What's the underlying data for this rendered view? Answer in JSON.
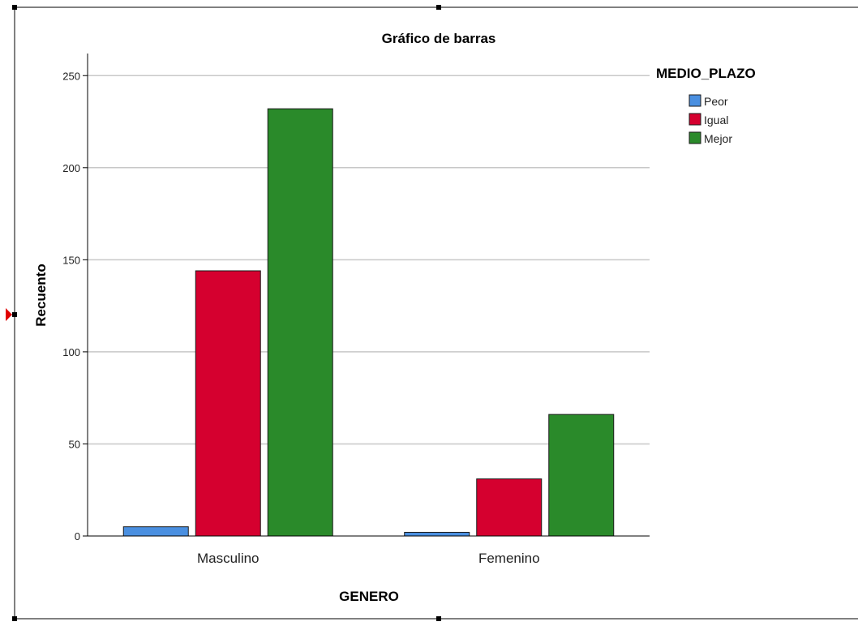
{
  "chart_data": {
    "type": "bar",
    "title": "Gráfico de barras",
    "xlabel": "GENERO",
    "ylabel": "Recuento",
    "categories": [
      "Masculino",
      "Femenino"
    ],
    "series": [
      {
        "name": "Peor",
        "values": [
          5,
          2
        ],
        "color": "#4a8fe0"
      },
      {
        "name": "Igual",
        "values": [
          144,
          31
        ],
        "color": "#d5002f"
      },
      {
        "name": "Mejor",
        "values": [
          232,
          66
        ],
        "color": "#2a8a2a"
      }
    ],
    "ylim": [
      0,
      262
    ],
    "yticks": [
      0,
      50,
      100,
      150,
      200,
      250
    ],
    "grid": true,
    "legend": {
      "title": "MEDIO_PLAZO",
      "placement": "top-right"
    }
  },
  "colors": {
    "grid": "#c8c8c8",
    "axis": "#000000",
    "handle": "#000000",
    "marker": "#e00000"
  }
}
